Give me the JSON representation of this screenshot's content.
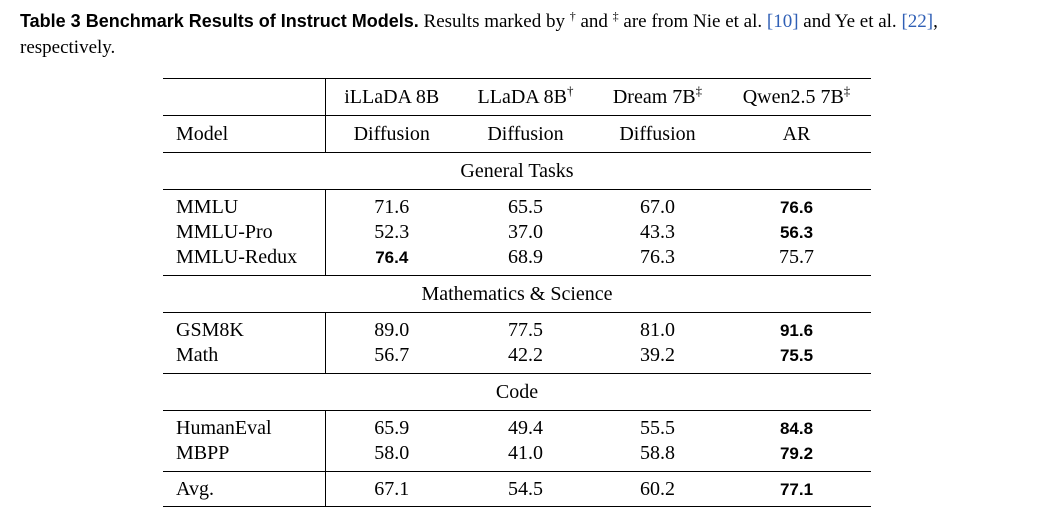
{
  "caption": {
    "label": "Table 3  Benchmark Results of Instruct Models.",
    "text_1": " Results marked by ",
    "dagger": "†",
    "text_2": " and ",
    "double_dagger": "‡",
    "text_3": " are from Nie et al. ",
    "ref_1": "[10]",
    "text_4": " and Ye et al. ",
    "ref_2": "[22]",
    "text_5": ", respectively."
  },
  "table": {
    "header": {
      "models": [
        {
          "name": "iLLaDA 8B",
          "mark": ""
        },
        {
          "name": "LLaDA 8B",
          "mark": "†"
        },
        {
          "name": "Dream 7B",
          "mark": "‡"
        },
        {
          "name": "Qwen2.5 7B",
          "mark": "‡"
        }
      ],
      "model_label": "Model",
      "types": [
        "Diffusion",
        "Diffusion",
        "Diffusion",
        "AR"
      ]
    },
    "sections": [
      {
        "title": "General Tasks",
        "rows": [
          {
            "name": "MMLU",
            "values": [
              "71.6",
              "65.5",
              "67.0",
              "76.6"
            ]
          },
          {
            "name": "MMLU-Pro",
            "values": [
              "52.3",
              "37.0",
              "43.3",
              "56.3"
            ]
          },
          {
            "name": "MMLU-Redux",
            "values": [
              "76.4",
              "68.9",
              "76.3",
              "75.7"
            ]
          }
        ]
      },
      {
        "title": "Mathematics & Science",
        "rows": [
          {
            "name": "GSM8K",
            "values": [
              "89.0",
              "77.5",
              "81.0",
              "91.6"
            ]
          },
          {
            "name": "Math",
            "values": [
              "56.7",
              "42.2",
              "39.2",
              "75.5"
            ]
          }
        ]
      },
      {
        "title": "Code",
        "rows": [
          {
            "name": "HumanEval",
            "values": [
              "65.9",
              "49.4",
              "55.5",
              "84.8"
            ]
          },
          {
            "name": "MBPP",
            "values": [
              "58.0",
              "41.0",
              "58.8",
              "79.2"
            ]
          }
        ]
      }
    ],
    "avg": {
      "name": "Avg.",
      "values": [
        "67.1",
        "54.5",
        "60.2",
        "77.1"
      ]
    }
  }
}
